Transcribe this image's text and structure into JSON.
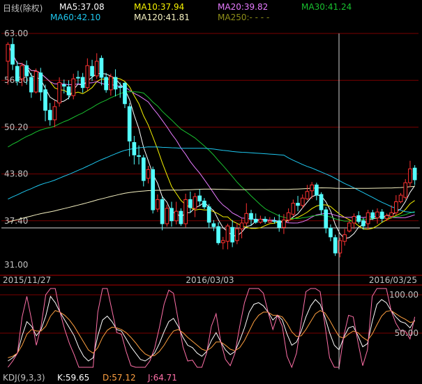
{
  "header": {
    "period": "日线(除权)",
    "ma": [
      {
        "label": "MA5:37.08",
        "color": "#ffffff"
      },
      {
        "label": "MA10:37.94",
        "color": "#f7f300"
      },
      {
        "label": "MA20:39.82",
        "color": "#e77bff"
      },
      {
        "label": "MA30:41.24",
        "color": "#19c02f"
      },
      {
        "label": "MA60:42.10",
        "color": "#1ec8f0"
      },
      {
        "label": "MA120:41.81",
        "color": "#f6f2c2"
      },
      {
        "label": "MA250:- - - -",
        "color": "#8f8f19"
      }
    ]
  },
  "price_axis": {
    "ticks": [
      63.0,
      56.6,
      50.2,
      43.8,
      37.4,
      31.0
    ],
    "tick_labels": [
      "63.00",
      "56.60",
      "50.20",
      "43.80",
      "37.40",
      "31.00"
    ]
  },
  "date_axis": {
    "labels": [
      "2015/11/27",
      "2016/03/03",
      "2016/03/25"
    ]
  },
  "kdj_axis": {
    "tick_labels": [
      "100.00",
      "50.00"
    ]
  },
  "kdj_legend": {
    "title": "KDJ(9,3,3)",
    "k": "K:59.65",
    "d": "D:57.12",
    "j": "J:64.71"
  },
  "colors": {
    "up": "#ff3232",
    "down": "#54ffff",
    "grid": "#7a0000",
    "axis_text": "#c0c0c0",
    "kdj_k": "#ffffff",
    "kdj_d": "#ffa040",
    "kdj_j": "#ff70a8",
    "crosshair": "#d0d0d0"
  },
  "chart_data": [
    {
      "type": "candlestick",
      "title": "日线(除权)",
      "y_range": [
        31.0,
        63.0
      ],
      "candles": [
        [
          59.2,
          61.5,
          56.0,
          61.8
        ],
        [
          61.5,
          58.8,
          58.0,
          62.4
        ],
        [
          58.5,
          56.5,
          55.9,
          59.2
        ],
        [
          56.8,
          58.6,
          55.8,
          59.0
        ],
        [
          58.6,
          57.2,
          56.0,
          59.3
        ],
        [
          57.0,
          55.0,
          54.2,
          57.6
        ],
        [
          55.0,
          57.8,
          54.8,
          58.2
        ],
        [
          57.6,
          55.0,
          53.8,
          58.3
        ],
        [
          55.3,
          52.5,
          51.0,
          56.0
        ],
        [
          52.5,
          51.2,
          50.4,
          53.5
        ],
        [
          51.2,
          53.0,
          50.2,
          53.8
        ],
        [
          53.5,
          56.3,
          53.0,
          57.0
        ],
        [
          56.0,
          55.8,
          54.8,
          56.7
        ],
        [
          55.7,
          54.6,
          54.0,
          56.6
        ],
        [
          54.5,
          56.8,
          54.0,
          57.5
        ],
        [
          57.0,
          56.9,
          56.1,
          57.9
        ],
        [
          57.0,
          55.6,
          54.9,
          57.6
        ],
        [
          55.6,
          58.6,
          55.2,
          59.6
        ],
        [
          58.5,
          57.2,
          56.5,
          59.4
        ],
        [
          57.2,
          59.2,
          56.8,
          60.3
        ],
        [
          59.6,
          57.0,
          55.9,
          60.0
        ],
        [
          57.0,
          55.3,
          54.9,
          57.6
        ],
        [
          55.3,
          57.1,
          54.5,
          57.5
        ],
        [
          57.0,
          55.4,
          54.4,
          58.1
        ],
        [
          55.7,
          55.6,
          54.2,
          56.3
        ],
        [
          56.2,
          53.4,
          52.8,
          56.4
        ],
        [
          53.0,
          48.3,
          46.2,
          53.5
        ],
        [
          48.1,
          46.4,
          45.1,
          49.0
        ],
        [
          46.3,
          46.2,
          45.1,
          47.7
        ],
        [
          46.0,
          42.9,
          42.1,
          46.4
        ],
        [
          43.2,
          44.4,
          42.5,
          44.9
        ],
        [
          44.4,
          38.9,
          38.4,
          44.8
        ],
        [
          39.0,
          40.3,
          38.6,
          41.0
        ],
        [
          40.3,
          37.0,
          36.1,
          40.7
        ],
        [
          37.0,
          39.1,
          36.6,
          39.6
        ],
        [
          39.1,
          37.4,
          36.6,
          40.0
        ],
        [
          37.4,
          38.7,
          36.9,
          40.0
        ],
        [
          38.7,
          37.0,
          36.7,
          39.1
        ],
        [
          37.0,
          40.3,
          36.5,
          41.1
        ],
        [
          40.3,
          39.2,
          38.5,
          41.4
        ],
        [
          39.1,
          40.7,
          37.9,
          41.2
        ],
        [
          40.8,
          40.1,
          39.5,
          41.7
        ],
        [
          40.1,
          39.3,
          39.0,
          40.5
        ],
        [
          39.3,
          37.2,
          36.4,
          39.7
        ],
        [
          37.0,
          36.6,
          36.0,
          37.5
        ],
        [
          36.6,
          34.4,
          34.1,
          37.2
        ],
        [
          34.4,
          34.7,
          33.5,
          35.2
        ],
        [
          34.6,
          36.7,
          33.5,
          37.0
        ],
        [
          36.5,
          34.5,
          33.8,
          37.5
        ],
        [
          34.7,
          36.3,
          34.2,
          37.1
        ],
        [
          36.3,
          37.1,
          35.0,
          37.7
        ],
        [
          37.1,
          38.4,
          36.7,
          39.8
        ],
        [
          38.4,
          37.6,
          36.7,
          38.9
        ],
        [
          37.6,
          37.2,
          37.0,
          38.4
        ],
        [
          37.2,
          37.6,
          37.0,
          38.1
        ],
        [
          37.6,
          37.3,
          37.0,
          38.0
        ],
        [
          37.2,
          37.4,
          37.1,
          37.9
        ],
        [
          37.4,
          37.3,
          37.0,
          37.9
        ],
        [
          37.4,
          36.5,
          35.9,
          38.3
        ],
        [
          36.5,
          37.5,
          35.6,
          38.3
        ],
        [
          37.5,
          38.5,
          37.2,
          39.1
        ],
        [
          38.3,
          39.8,
          38.0,
          40.3
        ],
        [
          39.8,
          39.5,
          38.7,
          40.8
        ],
        [
          39.5,
          40.5,
          39.1,
          41.0
        ],
        [
          40.4,
          41.4,
          40.2,
          42.3
        ],
        [
          41.5,
          42.3,
          40.4,
          42.7
        ],
        [
          42.3,
          40.9,
          40.2,
          42.6
        ],
        [
          41.0,
          38.9,
          38.2,
          41.3
        ],
        [
          38.9,
          36.4,
          35.7,
          39.3
        ],
        [
          36.4,
          35.2,
          34.6,
          36.9
        ],
        [
          35.1,
          33.0,
          32.6,
          35.5
        ],
        [
          33.0,
          34.7,
          32.4,
          35.1
        ],
        [
          34.6,
          35.5,
          34.0,
          36.3
        ],
        [
          36.0,
          37.1,
          35.8,
          37.4
        ],
        [
          37.1,
          38.0,
          36.3,
          38.4
        ],
        [
          38.1,
          37.3,
          37.0,
          38.7
        ],
        [
          37.4,
          36.7,
          36.2,
          37.8
        ],
        [
          37.0,
          38.5,
          36.2,
          38.9
        ],
        [
          38.5,
          37.8,
          37.5,
          38.9
        ],
        [
          37.8,
          38.6,
          37.0,
          39.1
        ],
        [
          38.6,
          37.7,
          37.2,
          39.0
        ],
        [
          37.7,
          38.1,
          37.4,
          38.4
        ],
        [
          38.0,
          38.5,
          37.7,
          39.5
        ],
        [
          38.5,
          40.0,
          38.2,
          40.9
        ],
        [
          40.0,
          40.9,
          39.8,
          41.2
        ],
        [
          40.6,
          42.6,
          40.3,
          43.1
        ],
        [
          42.6,
          44.5,
          42.0,
          45.6
        ],
        [
          44.6,
          43.0,
          42.3,
          45.0
        ]
      ]
    },
    {
      "type": "line",
      "name": "KDJ(9,3,3)",
      "y_range": [
        0,
        100
      ],
      "series": [
        {
          "name": "K",
          "values": [
            8,
            12,
            18,
            40,
            58,
            52,
            40,
            48,
            65,
            90,
            82,
            70,
            60,
            50,
            40,
            25,
            14,
            8,
            12,
            40,
            60,
            65,
            58,
            48,
            46,
            36,
            26,
            18,
            10,
            8,
            12,
            18,
            30,
            45,
            58,
            62,
            52,
            38,
            28,
            25,
            18,
            14,
            20,
            34,
            44,
            32,
            22,
            16,
            20,
            34,
            50,
            70,
            80,
            82,
            78,
            70,
            60,
            66,
            60,
            42,
            28,
            32,
            46,
            64,
            78,
            86,
            80,
            64,
            44,
            28,
            22,
            38,
            50,
            52,
            40,
            26,
            30,
            58,
            80,
            86,
            82,
            72,
            64,
            58,
            56,
            50,
            60
          ]
        },
        {
          "name": "D",
          "values": [
            12,
            14,
            18,
            28,
            42,
            48,
            46,
            46,
            52,
            65,
            72,
            70,
            66,
            60,
            52,
            42,
            32,
            22,
            18,
            25,
            38,
            47,
            51,
            50,
            48,
            44,
            38,
            31,
            23,
            17,
            14,
            15,
            20,
            28,
            38,
            46,
            48,
            44,
            38,
            33,
            28,
            23,
            21,
            25,
            32,
            32,
            28,
            23,
            21,
            25,
            34,
            46,
            58,
            66,
            70,
            70,
            66,
            66,
            64,
            56,
            45,
            39,
            40,
            48,
            58,
            68,
            72,
            69,
            60,
            49,
            39,
            37,
            42,
            46,
            44,
            38,
            34,
            42,
            54,
            65,
            71,
            72,
            68,
            64,
            61,
            57,
            58
          ]
        },
        {
          "name": "J",
          "values": [
            0,
            8,
            18,
            64,
            90,
            60,
            28,
            52,
            92,
            100,
            100,
            70,
            48,
            30,
            16,
            0,
            0,
            0,
            0,
            70,
            100,
            100,
            72,
            44,
            42,
            20,
            2,
            0,
            0,
            0,
            8,
            24,
            50,
            80,
            98,
            94,
            60,
            26,
            8,
            9,
            0,
            0,
            18,
            52,
            68,
            32,
            10,
            2,
            18,
            52,
            82,
            100,
            100,
            100,
            94,
            70,
            48,
            66,
            52,
            14,
            0,
            18,
            58,
            96,
            100,
            100,
            96,
            54,
            12,
            0,
            0,
            40,
            66,
            64,
            32,
            2,
            22,
            90,
            100,
            100,
            100,
            72,
            56,
            46,
            46,
            36,
            64
          ]
        }
      ]
    }
  ]
}
